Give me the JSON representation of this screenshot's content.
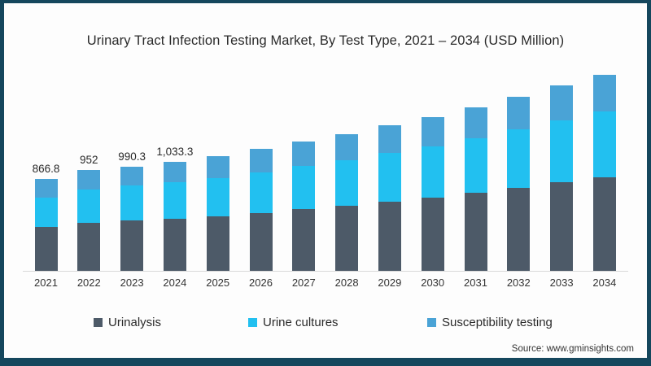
{
  "window": {
    "background": "#fdfdfd",
    "border_color": "#15475d"
  },
  "header": {
    "title": "Urinary Tract Infection Testing Market, By Test Type, 2021 – 2034 (USD Million)"
  },
  "footer": {
    "source": "Source: www.gminsights.com"
  },
  "colors": {
    "urinalysis": "#4d5a68",
    "urine_cultures": "#22c0f0",
    "susceptibility_testing": "#4aa3d6",
    "axis_line": "#d8d8d8",
    "frame_border": "#15475d"
  },
  "legend": {
    "items": [
      {
        "label": "Urinalysis",
        "color": "#4d5a68"
      },
      {
        "label": "Urine cultures",
        "color": "#22c0f0"
      },
      {
        "label": "Susceptibility testing",
        "color": "#4aa3d6"
      }
    ]
  },
  "chart_data": {
    "type": "bar",
    "stacked": true,
    "title": "Urinary Tract Infection Testing Market, By Test Type, 2021 – 2034 (USD Million)",
    "xlabel": "",
    "ylabel": "USD Million",
    "grid": false,
    "legend_position": "bottom",
    "ylim": [
      0,
      1900
    ],
    "categories": [
      "2021",
      "2022",
      "2023",
      "2024",
      "2025",
      "2026",
      "2027",
      "2028",
      "2029",
      "2030",
      "2031",
      "2032",
      "2033",
      "2034"
    ],
    "series": [
      {
        "name": "Urinalysis",
        "color": "#4d5a68",
        "values": [
          414,
          452,
          477,
          496,
          520,
          550,
          585,
          620,
          658,
          697,
          740,
          788,
          838,
          888
        ]
      },
      {
        "name": "Urine cultures",
        "color": "#22c0f0",
        "values": [
          277,
          318,
          332,
          347,
          362,
          385,
          408,
          435,
          462,
          488,
          519,
          552,
          587,
          622
        ]
      },
      {
        "name": "Susceptibility testing",
        "color": "#4aa3d6",
        "values": [
          175.8,
          182,
          181.3,
          190.3,
          208,
          220,
          232,
          245,
          260,
          275,
          291,
          310,
          330,
          350
        ]
      }
    ],
    "totals": [
      866.8,
      952,
      990.3,
      1033.3,
      1090,
      1155,
      1225,
      1300,
      1380,
      1460,
      1550,
      1650,
      1755,
      1860
    ],
    "total_labels": [
      "866.8",
      "952",
      "990.3",
      "1,033.3",
      "",
      "",
      "",
      "",
      "",
      "",
      "",
      "",
      "",
      ""
    ]
  }
}
